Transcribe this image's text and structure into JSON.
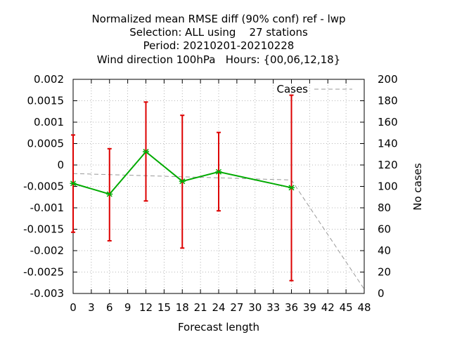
{
  "chart_data": {
    "type": "line",
    "title_lines": [
      "Normalized mean RMSE diff (90% conf) ref - lwp",
      "Selection: ALL using    27 stations",
      "Period: 20210201-20210228",
      "Wind direction 100hPa   Hours: {00,06,12,18}"
    ],
    "xlabel": "Forecast length",
    "ylabel_right": "No cases",
    "xlim": [
      0,
      48
    ],
    "ylim": [
      -0.003,
      0.002
    ],
    "y2lim": [
      0,
      200
    ],
    "x_ticks": [
      "0",
      "3",
      "6",
      "9",
      "12",
      "15",
      "18",
      "21",
      "24",
      "27",
      "30",
      "33",
      "36",
      "39",
      "42",
      "45",
      "48"
    ],
    "y_ticks": [
      "0.002",
      "0.0015",
      "0.001",
      "0.0005",
      "0",
      "-0.0005",
      "-0.001",
      "-0.0015",
      "-0.002",
      "-0.0025",
      "-0.003"
    ],
    "y2_ticks": [
      "200",
      "180",
      "160",
      "140",
      "120",
      "100",
      "80",
      "60",
      "40",
      "20",
      "0"
    ],
    "grid": true,
    "legend_position": "top-right",
    "series": [
      {
        "kind": "errorbars",
        "color": "#dd0000",
        "x": [
          0,
          6,
          12,
          18,
          24,
          36
        ],
        "low": [
          -0.00157,
          -0.00177,
          -0.00084,
          -0.00194,
          -0.00107,
          -0.0027
        ],
        "high": [
          0.0007,
          0.00038,
          0.00147,
          0.00116,
          0.00076,
          0.00163
        ]
      },
      {
        "kind": "line",
        "color": "#00aa00",
        "x": [
          0,
          6,
          12,
          18,
          24,
          36
        ],
        "y": [
          -0.00043,
          -0.00068,
          0.00031,
          -0.00038,
          -0.00016,
          -0.00053
        ]
      },
      {
        "kind": "cases",
        "name": "Cases",
        "axis": "right",
        "color": "#999999",
        "dash": true,
        "x": [
          0,
          6,
          12,
          18,
          24,
          36,
          48
        ],
        "y": [
          112,
          111,
          110,
          109,
          108,
          106,
          4
        ]
      }
    ]
  }
}
